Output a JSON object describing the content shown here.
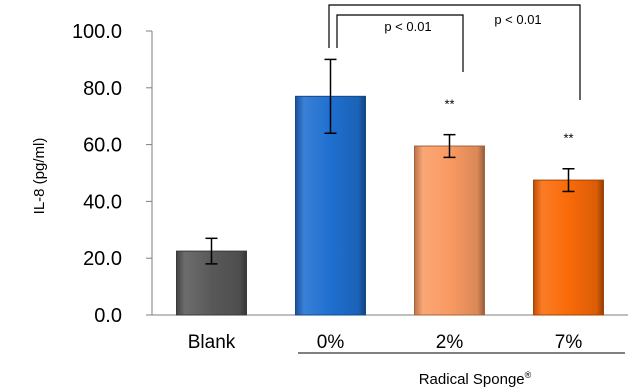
{
  "chart_data": {
    "type": "bar",
    "ylabel": "IL-8 (pg/ml)",
    "ylim": [
      0,
      100
    ],
    "yticks": [
      "0.0",
      "20.0",
      "40.0",
      "60.0",
      "80.0",
      "100.0"
    ],
    "categories": [
      "Blank",
      "0%",
      "2%",
      "7%"
    ],
    "values": [
      22.5,
      77.0,
      59.5,
      47.5
    ],
    "errors": [
      4.5,
      13.0,
      4.0,
      4.0
    ],
    "colors": [
      "#595959",
      "#1f6fd0",
      "#f99a63",
      "#f96a08"
    ],
    "group_label": "Radical Sponge",
    "group_label_mark": "®",
    "significance_labels": [
      "p < 0.01",
      "p < 0.01"
    ],
    "bar_annotations": [
      "",
      "",
      "**",
      "**"
    ],
    "grid": false
  }
}
